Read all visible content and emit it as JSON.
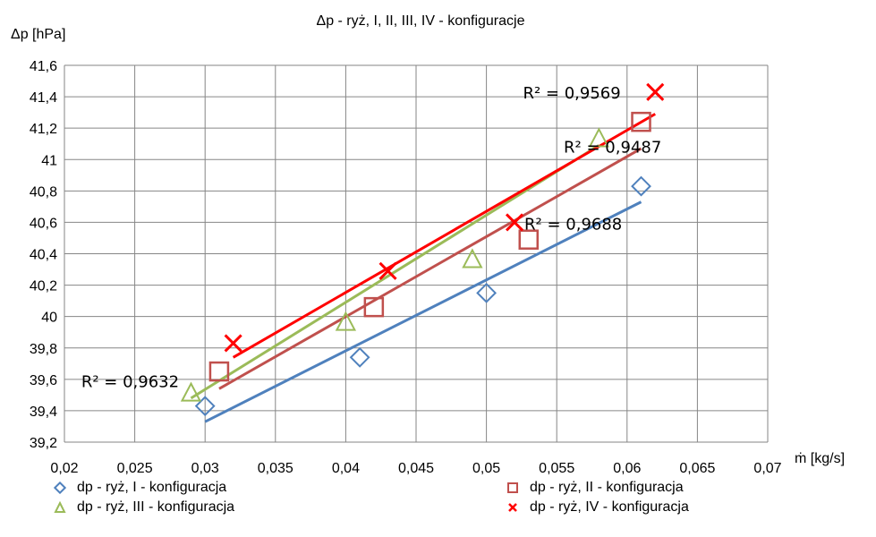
{
  "chart_data": {
    "type": "scatter",
    "title": "Δp - ryż, I, II, III, IV  - konfiguracje",
    "ylabel": "Δp [hPa]",
    "xlabel": "ṁ [kg/s]",
    "xlim": [
      0.02,
      0.07
    ],
    "ylim": [
      39.2,
      41.6
    ],
    "x_ticks": [
      "0,02",
      "0,025",
      "0,03",
      "0,035",
      "0,04",
      "0,045",
      "0,05",
      "0,055",
      "0,06",
      "0,065",
      "0,07"
    ],
    "y_ticks": [
      "39,2",
      "39,4",
      "39,6",
      "39,8",
      "40",
      "40,2",
      "40,4",
      "40,6",
      "40,8",
      "41",
      "41,2",
      "41,4",
      "41,6"
    ],
    "grid": true,
    "legend_position": "bottom",
    "series": [
      {
        "name": "dp - ryż, I - konfiguracja",
        "marker": "diamond",
        "color": "#4f81bd",
        "x": [
          0.03,
          0.041,
          0.05,
          0.061
        ],
        "y": [
          39.43,
          39.74,
          40.15,
          40.83
        ],
        "trendline": {
          "x": [
            0.03,
            0.061
          ],
          "y": [
            39.33,
            40.73
          ]
        },
        "r2_label": "R² = 0,9632"
      },
      {
        "name": "dp - ryż, II - konfiguracja",
        "marker": "square",
        "color": "#c0504d",
        "x": [
          0.031,
          0.042,
          0.053,
          0.061
        ],
        "y": [
          39.65,
          40.06,
          40.49,
          41.24
        ],
        "trendline": {
          "x": [
            0.031,
            0.061
          ],
          "y": [
            39.54,
            41.07
          ]
        },
        "r2_label": "R² = 0,9487"
      },
      {
        "name": "dp - ryż, III - konfiguracja",
        "marker": "triangle",
        "color": "#9bbb59",
        "x": [
          0.029,
          0.04,
          0.049,
          0.058
        ],
        "y": [
          39.51,
          39.96,
          40.36,
          41.13
        ],
        "trendline": {
          "x": [
            0.029,
            0.058
          ],
          "y": [
            39.48,
            41.09
          ]
        },
        "r2_label": "R² = 0,9688"
      },
      {
        "name": "dp - ryż, IV - konfiguracja",
        "marker": "x",
        "color": "#ff0000",
        "x": [
          0.032,
          0.043,
          0.052,
          0.062
        ],
        "y": [
          39.83,
          40.29,
          40.6,
          41.43
        ],
        "trendline": {
          "x": [
            0.032,
            0.062
          ],
          "y": [
            39.74,
            41.29
          ]
        },
        "r2_label": "R² = 0,9569"
      }
    ]
  }
}
